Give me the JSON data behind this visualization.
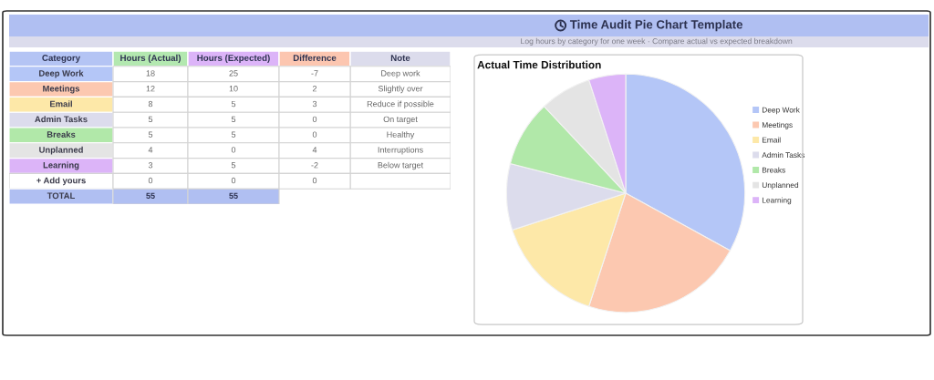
{
  "chart_data": [
    {
      "type": "other",
      "title": "Time Audit Pie Chart Template",
      "subtitle": "Log hours by category for one week · Compare actual vs expected breakdown"
    },
    {
      "type": "heatmap",
      "ylabel": "Category",
      "y2label": "Note",
      "categories": [
        "Hours (Actual)",
        "Hours (Expected)",
        "Difference"
      ],
      "y_categories": [
        "Deep Work",
        "Meetings",
        "Email",
        "Admin Tasks",
        "Breaks",
        "Unplanned",
        "Learning",
        "+ Add yours",
        "TOTAL"
      ],
      "y2_categories": [
        "Deep work",
        "Slightly over",
        "Reduce if possible",
        "On target",
        "Healthy",
        "Interruptions",
        "Below target",
        null,
        null
      ],
      "cells": [
        [
          18,
          25,
          -7
        ],
        [
          12,
          10,
          2
        ],
        [
          8,
          5,
          3
        ],
        [
          5,
          5,
          0
        ],
        [
          5,
          5,
          0
        ],
        [
          4,
          0,
          4
        ],
        [
          3,
          5,
          -2
        ],
        [
          0,
          0,
          0
        ],
        [
          55,
          55,
          null
        ]
      ],
      "data_labels": true
    },
    {
      "type": "pie",
      "title": "Actual Time Distribution",
      "categories": [
        "Deep Work",
        "Meetings",
        "Email",
        "Admin Tasks",
        "Breaks",
        "Unplanned",
        "Learning"
      ],
      "values": [
        33,
        22,
        15,
        9,
        9,
        7,
        5
      ],
      "colors": [
        "#b4c6f7",
        "#fcc8b0",
        "#fde8a8",
        "#dcdcec",
        "#b1e8a9",
        "#e4e4e4",
        "#dcb4f8"
      ],
      "legend": "right"
    }
  ]
}
